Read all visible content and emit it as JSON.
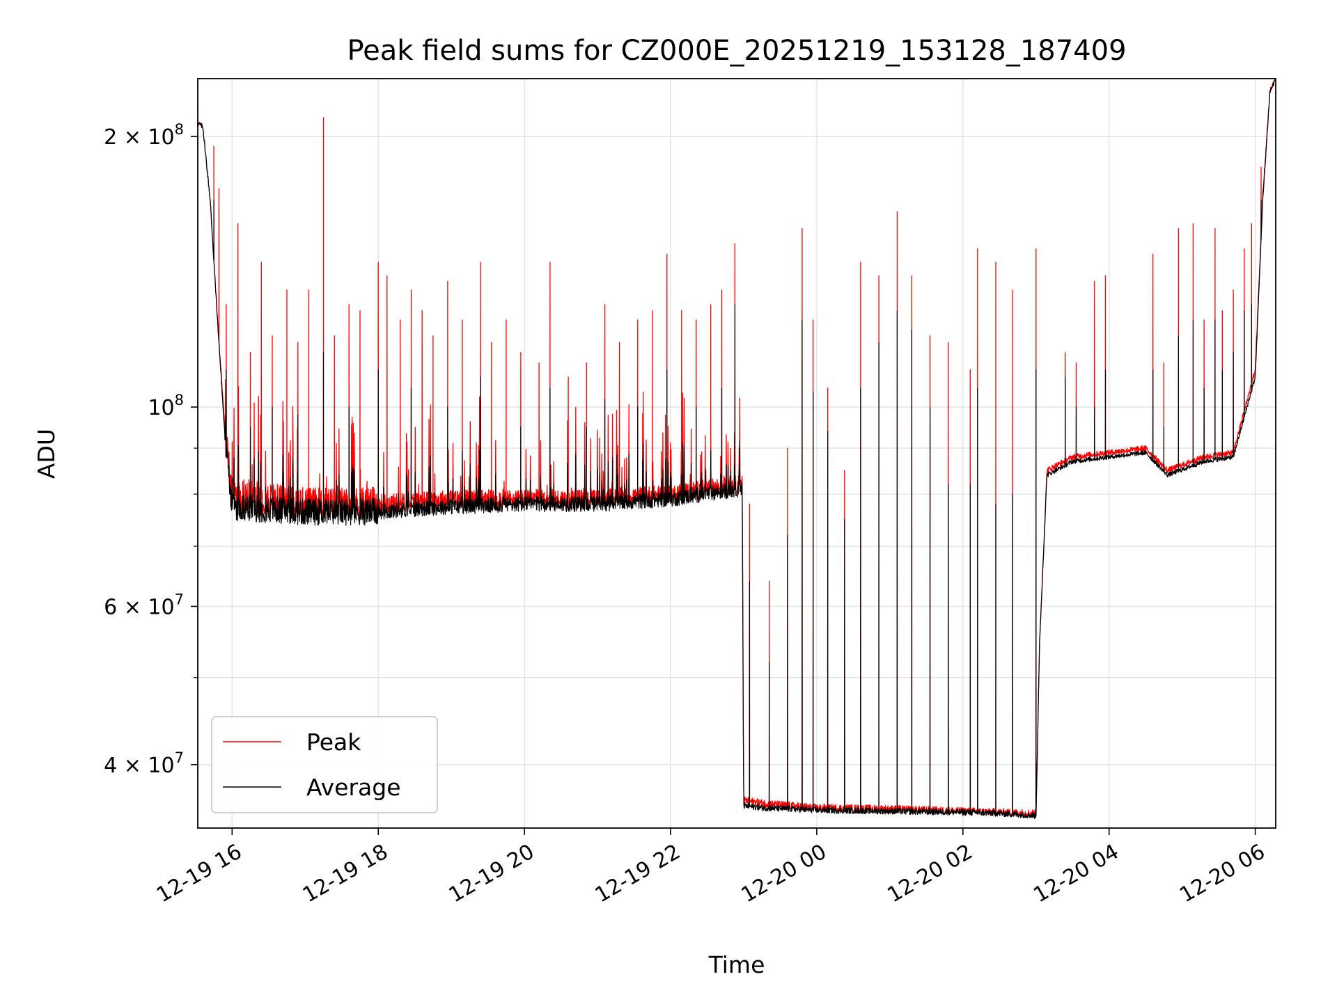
{
  "chart_data": {
    "type": "line",
    "title": "Peak field sums for CZ000E_20251219_153128_187409",
    "xlabel": "Time",
    "ylabel": "ADU",
    "yscale": "log",
    "xlim_hours": [
      15.53,
      30.28
    ],
    "ylim": [
      34000000,
      232000000
    ],
    "grid": true,
    "legend_position": "lower-left",
    "x_ticks": [
      {
        "hour": 16,
        "label": "12-19 16"
      },
      {
        "hour": 18,
        "label": "12-19 18"
      },
      {
        "hour": 20,
        "label": "12-19 20"
      },
      {
        "hour": 22,
        "label": "12-19 22"
      },
      {
        "hour": 24,
        "label": "12-20 00"
      },
      {
        "hour": 26,
        "label": "12-20 02"
      },
      {
        "hour": 28,
        "label": "12-20 04"
      },
      {
        "hour": 30,
        "label": "12-20 06"
      }
    ],
    "y_ticks": [
      {
        "value": 200000000,
        "mant": "2",
        "exp": "8"
      },
      {
        "value": 100000000,
        "mant": "",
        "exp": "8"
      },
      {
        "value": 60000000,
        "mant": "6",
        "exp": "7"
      },
      {
        "value": 40000000,
        "mant": "4",
        "exp": "7"
      }
    ],
    "y_minor_ticks": [
      30000000,
      50000000,
      70000000,
      80000000,
      90000000
    ],
    "series": [
      {
        "name": "Peak",
        "color": "#ff0000",
        "baseline": [
          [
            15.53,
            207000000
          ],
          [
            15.6,
            205000000
          ],
          [
            15.7,
            170000000
          ],
          [
            15.8,
            125000000
          ],
          [
            15.9,
            95000000
          ],
          [
            16.0,
            80000000
          ],
          [
            16.5,
            79000000
          ],
          [
            17.0,
            78000000
          ],
          [
            18.0,
            78000000
          ],
          [
            19.0,
            79000000
          ],
          [
            20.0,
            79000000
          ],
          [
            21.0,
            79000000
          ],
          [
            22.0,
            80000000
          ],
          [
            22.9,
            82000000
          ],
          [
            22.98,
            82000000
          ],
          [
            23.0,
            36500000
          ],
          [
            23.3,
            36200000
          ],
          [
            24.0,
            35800000
          ],
          [
            25.0,
            35700000
          ],
          [
            26.0,
            35500000
          ],
          [
            26.5,
            35400000
          ],
          [
            27.0,
            35300000
          ],
          [
            27.05,
            55000000
          ],
          [
            27.15,
            85000000
          ],
          [
            27.5,
            88000000
          ],
          [
            28.0,
            89000000
          ],
          [
            28.5,
            90000000
          ],
          [
            28.8,
            85000000
          ],
          [
            29.3,
            88000000
          ],
          [
            29.7,
            89000000
          ],
          [
            30.0,
            110000000
          ],
          [
            30.1,
            170000000
          ],
          [
            30.2,
            225000000
          ],
          [
            30.28,
            232000000
          ]
        ],
        "spikes": [
          [
            15.75,
            195000000
          ],
          [
            15.82,
            175000000
          ],
          [
            15.92,
            130000000
          ],
          [
            16.08,
            160000000
          ],
          [
            16.25,
            115000000
          ],
          [
            16.4,
            145000000
          ],
          [
            16.55,
            120000000
          ],
          [
            16.75,
            135000000
          ],
          [
            16.9,
            118000000
          ],
          [
            17.05,
            135000000
          ],
          [
            17.25,
            210000000
          ],
          [
            17.4,
            120000000
          ],
          [
            17.6,
            130000000
          ],
          [
            17.75,
            128000000
          ],
          [
            18.0,
            145000000
          ],
          [
            18.12,
            140000000
          ],
          [
            18.3,
            125000000
          ],
          [
            18.45,
            135000000
          ],
          [
            18.6,
            128000000
          ],
          [
            18.75,
            120000000
          ],
          [
            18.95,
            138000000
          ],
          [
            19.15,
            125000000
          ],
          [
            19.4,
            145000000
          ],
          [
            19.55,
            118000000
          ],
          [
            19.75,
            125000000
          ],
          [
            19.95,
            115000000
          ],
          [
            20.2,
            112000000
          ],
          [
            20.35,
            145000000
          ],
          [
            20.6,
            108000000
          ],
          [
            20.85,
            112000000
          ],
          [
            21.1,
            130000000
          ],
          [
            21.3,
            118000000
          ],
          [
            21.55,
            125000000
          ],
          [
            21.75,
            128000000
          ],
          [
            21.95,
            148000000
          ],
          [
            22.15,
            128000000
          ],
          [
            22.35,
            125000000
          ],
          [
            22.55,
            130000000
          ],
          [
            22.7,
            135000000
          ],
          [
            22.88,
            152000000
          ],
          [
            23.08,
            78000000
          ],
          [
            23.35,
            64000000
          ],
          [
            23.6,
            90000000
          ],
          [
            23.8,
            158000000
          ],
          [
            23.95,
            125000000
          ],
          [
            24.15,
            105000000
          ],
          [
            24.38,
            85000000
          ],
          [
            24.6,
            145000000
          ],
          [
            24.85,
            140000000
          ],
          [
            25.1,
            165000000
          ],
          [
            25.3,
            140000000
          ],
          [
            25.55,
            120000000
          ],
          [
            25.8,
            118000000
          ],
          [
            26.1,
            110000000
          ],
          [
            26.2,
            150000000
          ],
          [
            26.45,
            145000000
          ],
          [
            26.68,
            135000000
          ],
          [
            27.0,
            150000000
          ],
          [
            27.4,
            115000000
          ],
          [
            27.55,
            112000000
          ],
          [
            27.8,
            138000000
          ],
          [
            27.95,
            140000000
          ],
          [
            28.6,
            148000000
          ],
          [
            28.75,
            112000000
          ],
          [
            28.95,
            158000000
          ],
          [
            29.15,
            160000000
          ],
          [
            29.3,
            125000000
          ],
          [
            29.45,
            158000000
          ],
          [
            29.55,
            128000000
          ],
          [
            29.7,
            135000000
          ],
          [
            29.85,
            150000000
          ],
          [
            29.95,
            160000000
          ],
          [
            30.08,
            185000000
          ]
        ]
      },
      {
        "name": "Average",
        "color": "#000000",
        "baseline": [
          [
            15.53,
            207000000
          ],
          [
            15.6,
            205000000
          ],
          [
            15.7,
            170000000
          ],
          [
            15.8,
            125000000
          ],
          [
            15.9,
            93000000
          ],
          [
            16.0,
            77500000
          ],
          [
            16.5,
            77000000
          ],
          [
            17.0,
            76500000
          ],
          [
            18.0,
            76500000
          ],
          [
            19.0,
            77500000
          ],
          [
            20.0,
            78000000
          ],
          [
            21.0,
            78000000
          ],
          [
            22.0,
            79000000
          ],
          [
            22.9,
            81000000
          ],
          [
            22.98,
            81000000
          ],
          [
            23.0,
            36000000
          ],
          [
            23.3,
            35800000
          ],
          [
            24.0,
            35600000
          ],
          [
            25.0,
            35500000
          ],
          [
            26.0,
            35400000
          ],
          [
            26.5,
            35300000
          ],
          [
            27.0,
            35100000
          ],
          [
            27.05,
            55000000
          ],
          [
            27.15,
            84000000
          ],
          [
            27.5,
            87000000
          ],
          [
            28.0,
            88000000
          ],
          [
            28.5,
            89000000
          ],
          [
            28.8,
            84000000
          ],
          [
            29.3,
            87000000
          ],
          [
            29.7,
            88000000
          ],
          [
            30.0,
            108000000
          ],
          [
            30.1,
            168000000
          ],
          [
            30.2,
            224000000
          ],
          [
            30.28,
            232000000
          ]
        ],
        "spikes": [
          [
            15.75,
            170000000
          ],
          [
            15.92,
            110000000
          ],
          [
            16.25,
            95000000
          ],
          [
            16.55,
            100000000
          ],
          [
            16.9,
            98000000
          ],
          [
            17.25,
            115000000
          ],
          [
            17.6,
            100000000
          ],
          [
            18.0,
            110000000
          ],
          [
            18.45,
            105000000
          ],
          [
            18.95,
            100000000
          ],
          [
            19.4,
            108000000
          ],
          [
            19.95,
            95000000
          ],
          [
            20.35,
            105000000
          ],
          [
            20.85,
            95000000
          ],
          [
            21.1,
            102000000
          ],
          [
            21.55,
            100000000
          ],
          [
            21.95,
            110000000
          ],
          [
            22.35,
            100000000
          ],
          [
            22.7,
            105000000
          ],
          [
            22.88,
            130000000
          ],
          [
            23.08,
            64000000
          ],
          [
            23.35,
            52000000
          ],
          [
            23.6,
            72000000
          ],
          [
            23.8,
            125000000
          ],
          [
            23.95,
            104000000
          ],
          [
            24.15,
            94000000
          ],
          [
            24.38,
            75000000
          ],
          [
            24.6,
            105000000
          ],
          [
            24.85,
            118000000
          ],
          [
            25.1,
            128000000
          ],
          [
            25.3,
            122000000
          ],
          [
            25.55,
            100000000
          ],
          [
            25.8,
            82000000
          ],
          [
            26.1,
            82000000
          ],
          [
            26.2,
            105000000
          ],
          [
            26.45,
            78000000
          ],
          [
            26.68,
            80000000
          ],
          [
            27.0,
            110000000
          ],
          [
            27.4,
            108000000
          ],
          [
            27.55,
            100000000
          ],
          [
            27.8,
            100000000
          ],
          [
            27.95,
            110000000
          ],
          [
            28.6,
            110000000
          ],
          [
            28.75,
            95000000
          ],
          [
            28.95,
            120000000
          ],
          [
            29.15,
            125000000
          ],
          [
            29.3,
            105000000
          ],
          [
            29.45,
            125000000
          ],
          [
            29.55,
            110000000
          ],
          [
            29.7,
            115000000
          ],
          [
            29.85,
            128000000
          ],
          [
            29.95,
            130000000
          ],
          [
            30.08,
            170000000
          ]
        ]
      }
    ]
  }
}
